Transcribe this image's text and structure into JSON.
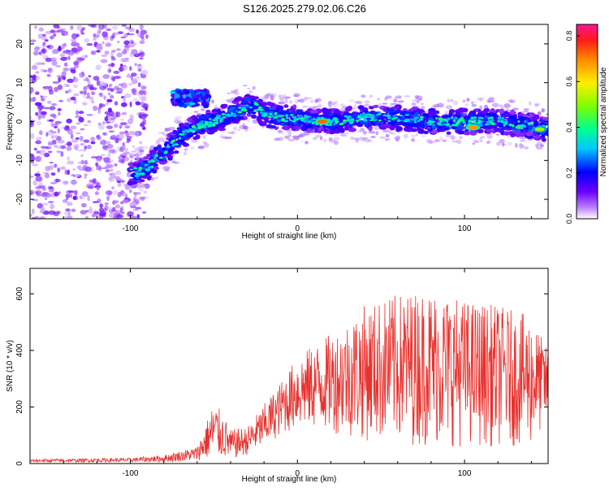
{
  "title": "S126.2025.279.02.06.C26",
  "chart_data": [
    {
      "type": "heatmap",
      "xlabel": "Height of straight line (km)",
      "ylabel": "Frequency (Hz)",
      "xlim": [
        -160,
        150
      ],
      "ylim": [
        -25,
        25
      ],
      "xticks": [
        -100,
        0,
        100
      ],
      "yticks": [
        -20,
        -10,
        0,
        10,
        20
      ],
      "colorbar": {
        "label": "Normalized spectral amplitude",
        "range": [
          0,
          0.85
        ],
        "ticks": [
          0.0,
          0.2,
          0.4,
          0.6,
          0.8
        ]
      },
      "ridge": {
        "description_points_x_km": [
          -95,
          -90,
          -80,
          -70,
          -60,
          -50,
          -40,
          -30,
          -25,
          -20,
          -10,
          0,
          10,
          20,
          40,
          60,
          80,
          100,
          120,
          140,
          150
        ],
        "frequency_hz": [
          -13,
          -12,
          -8,
          -4,
          -1,
          0,
          2,
          4,
          4,
          2,
          1,
          1,
          0,
          0,
          1,
          1,
          0,
          0,
          0,
          -1,
          -2
        ]
      },
      "hotspots": [
        {
          "x": 15,
          "y": 0,
          "amplitude": 0.85
        },
        {
          "x": 105,
          "y": -1.5,
          "amplitude": 0.8
        },
        {
          "x": 145,
          "y": -2,
          "amplitude": 0.6
        }
      ]
    },
    {
      "type": "line",
      "xlabel": "Height of straight line (km)",
      "ylabel": "SNR (10 * v/v)",
      "xlim": [
        -160,
        150
      ],
      "ylim": [
        0,
        690
      ],
      "xticks": [
        -100,
        0,
        100
      ],
      "yticks": [
        0,
        200,
        400,
        600
      ],
      "color": "#e8322e",
      "envelope": {
        "x": [
          -160,
          -100,
          -80,
          -60,
          -50,
          -45,
          -40,
          -30,
          -20,
          -10,
          0,
          10,
          20,
          40,
          60,
          80,
          100,
          120,
          140,
          150
        ],
        "upper": [
          15,
          20,
          30,
          60,
          220,
          180,
          120,
          130,
          210,
          290,
          380,
          420,
          460,
          560,
          600,
          620,
          580,
          560,
          520,
          400
        ],
        "lower": [
          5,
          5,
          5,
          10,
          20,
          20,
          15,
          30,
          60,
          100,
          120,
          120,
          110,
          80,
          70,
          60,
          60,
          60,
          60,
          150
        ]
      }
    }
  ]
}
